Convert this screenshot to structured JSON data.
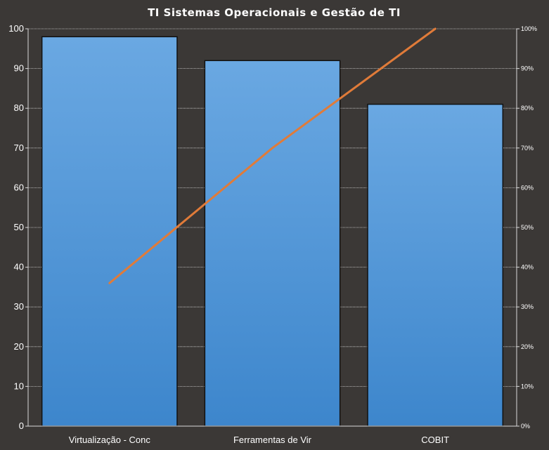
{
  "chart_data": {
    "type": "bar",
    "title": "TI Sistemas Operacionais e Gestão de TI",
    "categories": [
      "Virtualização - Conc",
      "Ferramentas de Vir",
      "COBIT"
    ],
    "series": [
      {
        "values": [
          98,
          92,
          81
        ]
      }
    ],
    "cumulative_percent": [
      36,
      70,
      100
    ],
    "ylim": [
      0,
      100
    ],
    "yticks": [
      "0",
      "10",
      "20",
      "30",
      "40",
      "50",
      "60",
      "70",
      "80",
      "90",
      "100"
    ],
    "y2lim": [
      0,
      100
    ],
    "y2ticks": [
      "0%",
      "10%",
      "20%",
      "30%",
      "40%",
      "50%",
      "60%",
      "70%",
      "80%",
      "90%",
      "100%"
    ],
    "grid": true,
    "legend": "none",
    "colors": {
      "bar_top": "#6aa8e2",
      "bar_bottom": "#3d86cc",
      "line": "#e07b39",
      "background": "#3b3836"
    }
  }
}
